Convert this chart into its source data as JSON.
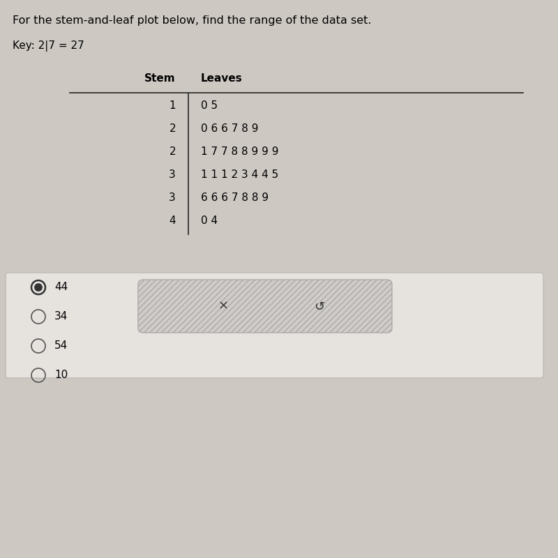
{
  "title": "For the stem-and-leaf plot below, find the range of the data set.",
  "key_text": "Key: 2|7 = 27",
  "stem_header": "Stem",
  "leaves_header": "Leaves",
  "rows": [
    {
      "stem": "1",
      "leaves": "0 5"
    },
    {
      "stem": "2",
      "leaves": "0 6 6 7 8 9"
    },
    {
      "stem": "2",
      "leaves": "1 7 7 8 8 9 9 9"
    },
    {
      "stem": "3",
      "leaves": "1 1 1 2 3 4 4 5"
    },
    {
      "stem": "3",
      "leaves": "6 6 6 7 8 8 9"
    },
    {
      "stem": "4",
      "leaves": "0 4"
    }
  ],
  "choices": [
    {
      "label": "44",
      "selected": true
    },
    {
      "label": "34",
      "selected": false
    },
    {
      "label": "54",
      "selected": false
    },
    {
      "label": "10",
      "selected": false
    }
  ],
  "bg_color": "#cdc8c2",
  "table_bg": "#eeeae6",
  "choices_bg": "#e8e4e0",
  "popup_fill": "#d0ccc8",
  "popup_border": "#aaaaaa",
  "selected_color": "#333333",
  "unselected_color": "#555555",
  "title_fontsize": 11.5,
  "key_fontsize": 11,
  "table_fontsize": 11,
  "choice_fontsize": 11
}
